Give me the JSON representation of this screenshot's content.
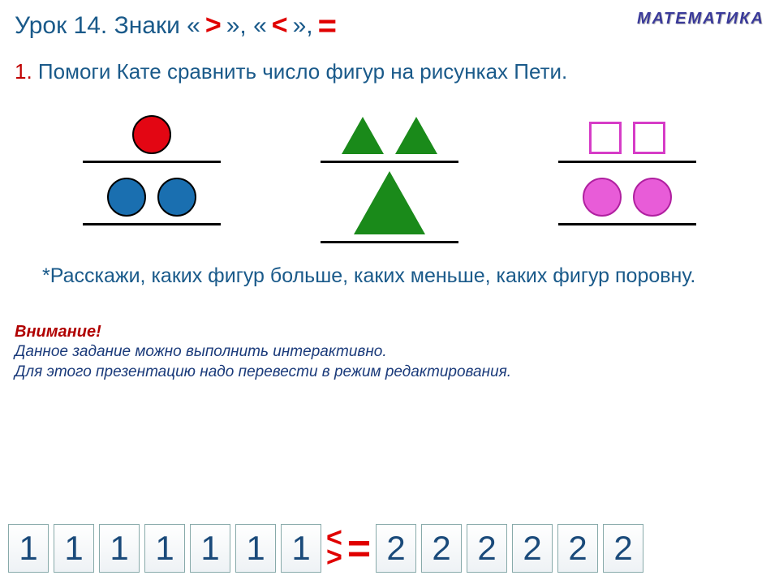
{
  "header": {
    "title_prefix": "Урок 14. Знаки «",
    "title_mid1": "», «",
    "title_mid2": "»,",
    "subject": "МАТЕМАТИКА"
  },
  "task": {
    "number": "1.",
    "text": "Помоги Кате сравнить число фигур на рисунках Пети."
  },
  "shapes": {
    "group1": {
      "top": [
        {
          "type": "circle",
          "fill": "#e30613",
          "stroke": "#000"
        }
      ],
      "bottom": [
        {
          "type": "circle",
          "fill": "#1a6fb0",
          "stroke": "#000"
        },
        {
          "type": "circle",
          "fill": "#1a6fb0",
          "stroke": "#000"
        }
      ]
    },
    "group2": {
      "top": [
        {
          "type": "triangle-sm",
          "fill": "#1a8a1a"
        },
        {
          "type": "triangle-sm",
          "fill": "#1a8a1a"
        }
      ],
      "bottom": [
        {
          "type": "triangle-lg",
          "fill": "#1a8a1a"
        }
      ]
    },
    "group3": {
      "top": [
        {
          "type": "square",
          "fill": "#ffffff",
          "stroke": "#d63cc7"
        },
        {
          "type": "square",
          "fill": "#ffffff",
          "stroke": "#d63cc7"
        }
      ],
      "bottom": [
        {
          "type": "circle",
          "fill": "#e85cd8",
          "stroke": "#b020a0"
        },
        {
          "type": "circle",
          "fill": "#e85cd8",
          "stroke": "#b020a0"
        }
      ]
    },
    "divider_color": "#000000",
    "divider_width": 170
  },
  "subtask": "*Расскажи, каких фигур больше, каких меньше, каких фигур поровну.",
  "attention": {
    "title": "Внимание!",
    "line1": "Данное задание можно выполнить интерактивно.",
    "line2": "Для этого презентацию надо перевести в режим редактирования."
  },
  "tiles": {
    "left": [
      "1",
      "1",
      "1",
      "1",
      "1",
      "1",
      "1"
    ],
    "right": [
      "2",
      "2",
      "2",
      "2",
      "2",
      "2"
    ],
    "tile_bg": "#f5f8fa",
    "tile_border": "#8aa",
    "tile_text_color": "#1a4a7a",
    "op_color": "#e00000"
  },
  "colors": {
    "title_text": "#1a5a8a",
    "sign_red": "#e00000",
    "subject_text": "#3a3a9a",
    "task_num": "#c00000",
    "attention_title": "#b00000",
    "attention_body": "#1a3a7a"
  }
}
